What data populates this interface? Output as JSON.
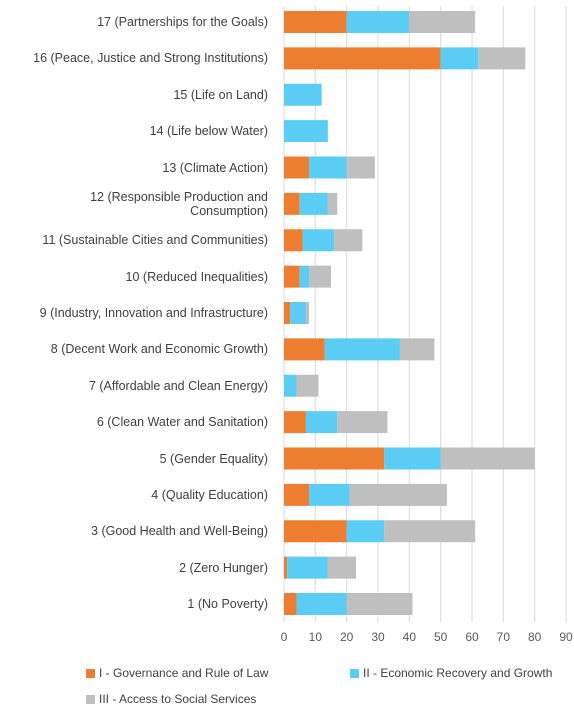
{
  "chart_data": {
    "type": "bar",
    "orientation": "horizontal",
    "stacked": true,
    "categories": [
      "17 (Partnerships for the Goals)",
      "16 (Peace, Justice and Strong Institutions)",
      "15 (Life on Land)",
      "14 (Life below Water)",
      "13 (Climate Action)",
      "12 (Responsible Production and\nConsumption)",
      "11 (Sustainable Cities and Communities)",
      "10 (Reduced Inequalities)",
      "9 (Industry, Innovation and Infrastructure)",
      "8 (Decent Work and Economic Growth)",
      "7 (Affordable and Clean Energy)",
      "6 (Clean Water and Sanitation)",
      "5 (Gender Equality)",
      "4 (Quality Education)",
      "3 (Good Health and Well-Being)",
      "2 (Zero Hunger)",
      "1 (No Poverty)"
    ],
    "series": [
      {
        "name": "I - Governance and Rule of Law",
        "color": "#ed7d31",
        "values": [
          20,
          50,
          0,
          0,
          8,
          5,
          6,
          5,
          2,
          13,
          0,
          7,
          32,
          8,
          20,
          1,
          4
        ]
      },
      {
        "name": "II - Economic Recovery and Growth",
        "color": "#5bcdf5",
        "values": [
          20,
          12,
          12,
          14,
          12,
          9,
          10,
          3,
          5,
          24,
          4,
          10,
          18,
          13,
          12,
          13,
          16
        ]
      },
      {
        "name": "III - Access to Social Services",
        "color": "#bfbfbf",
        "values": [
          21,
          15,
          0,
          0,
          9,
          3,
          9,
          7,
          1,
          11,
          7,
          16,
          30,
          31,
          29,
          9,
          21
        ]
      }
    ],
    "xlim": [
      0,
      90
    ],
    "xticks": [
      0,
      10,
      20,
      30,
      40,
      50,
      60,
      70,
      80,
      90
    ],
    "grid": true,
    "legend": "bottom"
  }
}
